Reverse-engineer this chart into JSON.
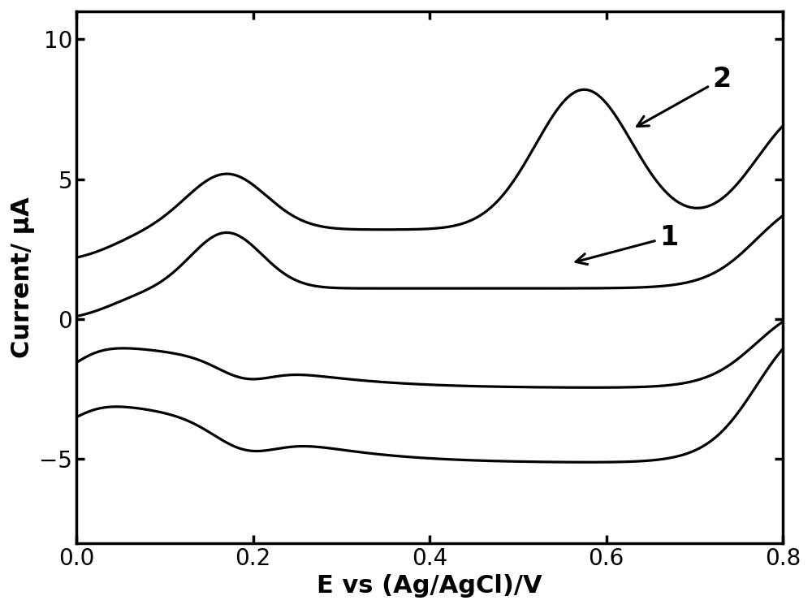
{
  "title": "",
  "xlabel": "E vs (Ag/AgCl)/V",
  "ylabel": "Current/ μA",
  "xlim": [
    0.0,
    0.8
  ],
  "ylim": [
    -8.0,
    11.0
  ],
  "xticks": [
    0.0,
    0.2,
    0.4,
    0.6,
    0.8
  ],
  "yticks": [
    -5,
    0,
    5,
    10
  ],
  "background_color": "#ffffff",
  "line_color": "#000000",
  "line_width": 2.3,
  "xlabel_fontsize": 22,
  "ylabel_fontsize": 22,
  "tick_fontsize": 20,
  "annot_fontsize": 24
}
